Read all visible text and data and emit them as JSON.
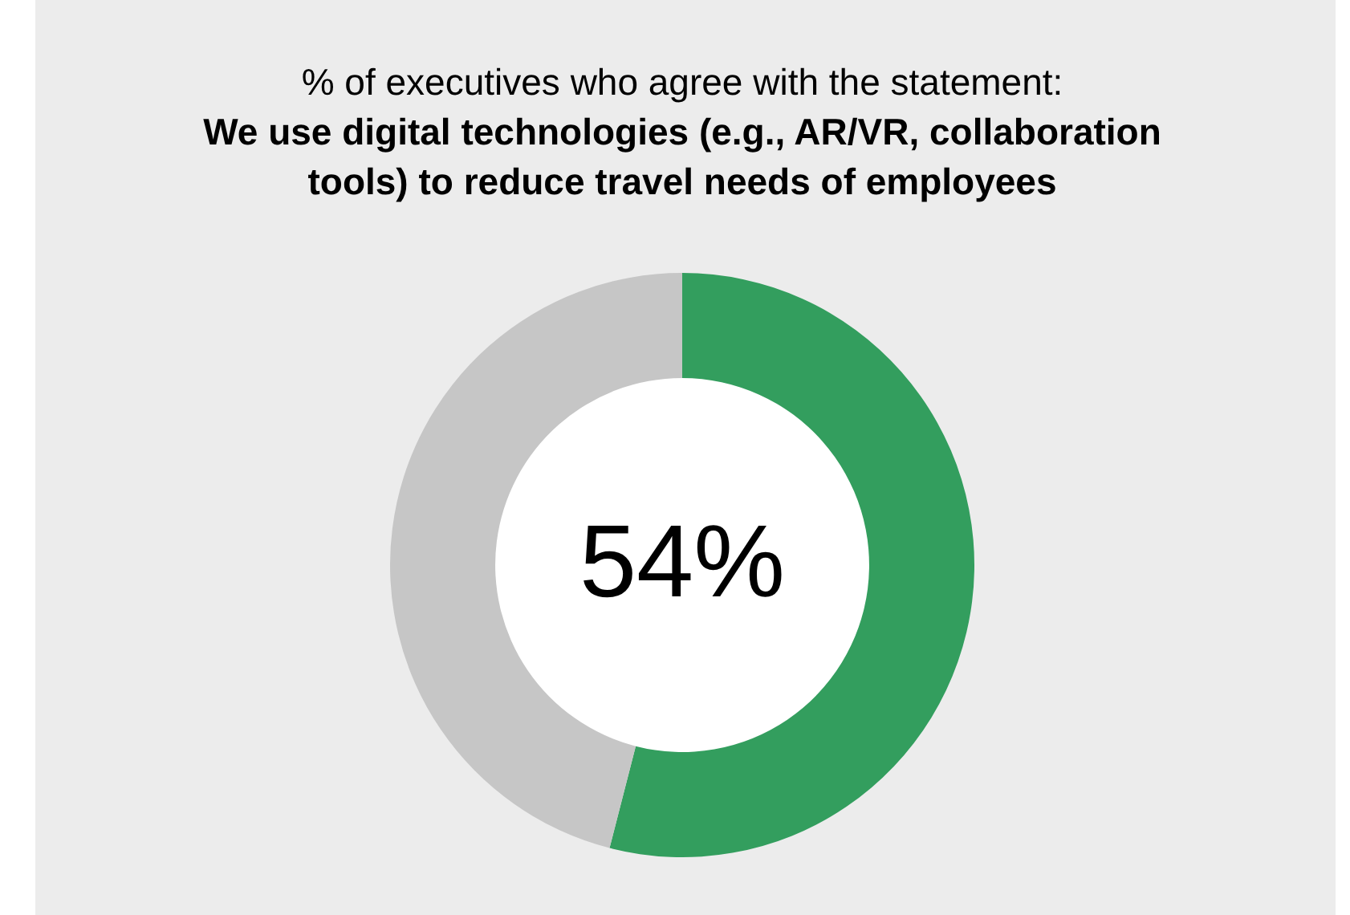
{
  "chart_data": {
    "type": "donut",
    "title": "% of executives who agree with the statement:",
    "subtitle": "We use digital technologies (e.g., AR/VR, collaboration tools) to reduce travel needs of employees",
    "categories": [
      null,
      null
    ],
    "values": [
      54,
      46
    ],
    "colors": [
      "#339e5e",
      "#c6c6c6"
    ],
    "value_labels": [
      "54%",
      null
    ],
    "legend": false
  }
}
